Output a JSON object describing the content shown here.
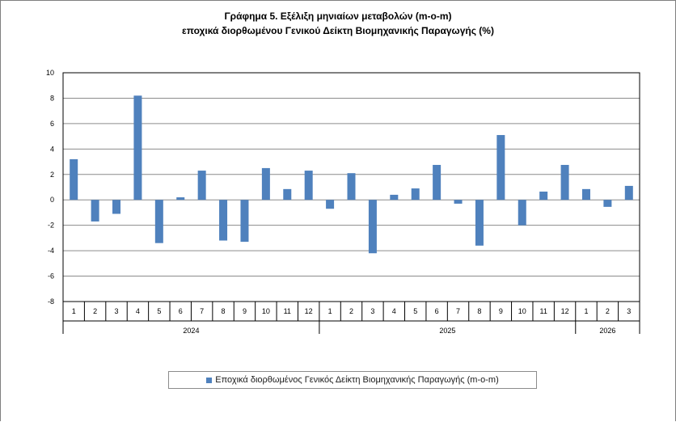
{
  "chart_data": {
    "type": "bar",
    "title": "Γράφημα 5. Εξέλιξη μηνιαίων μεταβολών (m-o-m)",
    "subtitle": "εποχικά διορθωμένου Γενικού Δείκτη Βιομηχανικής Παραγωγής (%)",
    "ylim": [
      -8,
      10
    ],
    "yticks": [
      "10",
      "8",
      "6",
      "4",
      "2",
      "0",
      "-2",
      "-4",
      "-6",
      "-8"
    ],
    "grid": true,
    "legend_placement": "bottom",
    "bar_color": "#4f81bd",
    "categories": [
      "1",
      "2",
      "3",
      "4",
      "5",
      "6",
      "7",
      "8",
      "9",
      "10",
      "11",
      "12",
      "1",
      "2",
      "3",
      "4",
      "5",
      "6",
      "7",
      "8",
      "9",
      "10",
      "11",
      "12",
      "1",
      "2",
      "3"
    ],
    "groups": [
      {
        "label": "2024",
        "count": 12
      },
      {
        "label": "2025",
        "count": 12
      },
      {
        "label": "2026",
        "count": 3
      }
    ],
    "series": [
      {
        "name": "Εποχικά διορθωμένος Γενικός Δείκτη Βιομηχανικής Παραγωγής (m-o-m)",
        "values": [
          3.2,
          -1.7,
          -1.1,
          8.2,
          -3.4,
          0.2,
          2.3,
          -3.2,
          -3.3,
          2.5,
          0.85,
          2.3,
          -0.7,
          2.1,
          -4.2,
          0.4,
          0.9,
          2.75,
          -0.3,
          -3.6,
          5.1,
          -2.0,
          0.65,
          2.75,
          0.85,
          -0.55,
          1.1
        ]
      }
    ]
  }
}
